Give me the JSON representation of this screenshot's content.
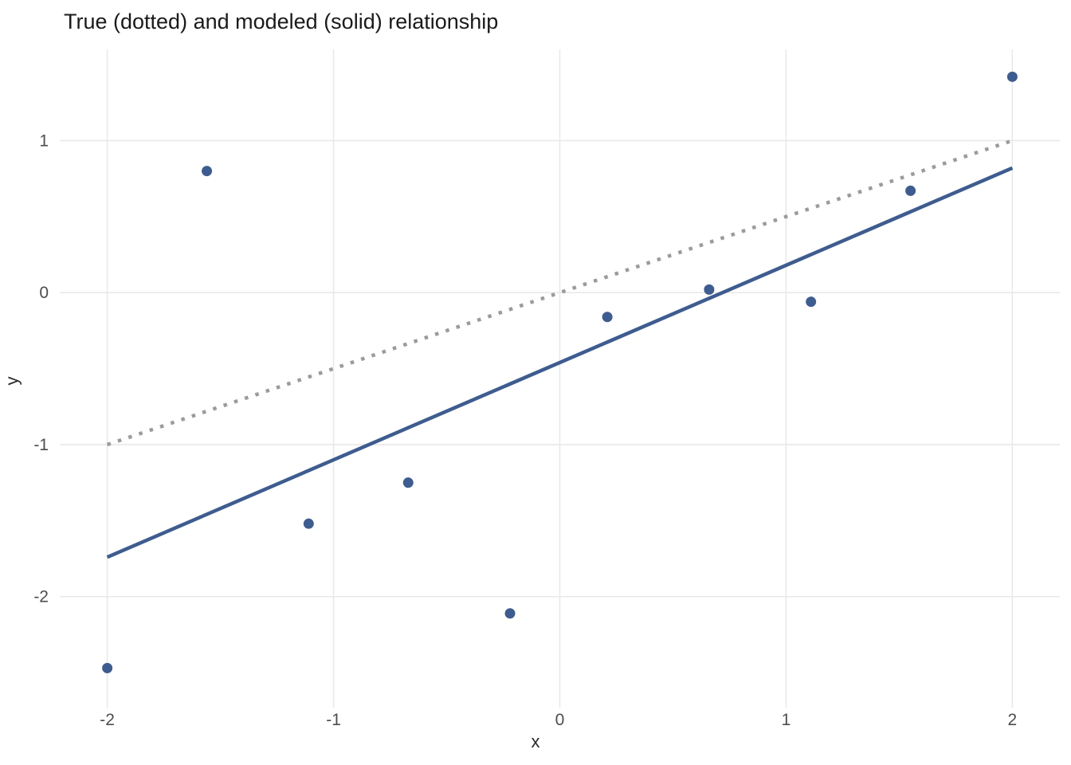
{
  "chart_data": {
    "type": "scatter",
    "title": "True (dotted) and modeled (solid) relationship",
    "xlabel": "x",
    "ylabel": "y",
    "xlim": [
      -2.21,
      2.21
    ],
    "ylim": [
      -2.73,
      1.6
    ],
    "x_ticks": [
      -2,
      -1,
      0,
      1,
      2
    ],
    "y_ticks": [
      -2,
      -1,
      0,
      1
    ],
    "grid": true,
    "legend": "none",
    "points": [
      {
        "x": -2.0,
        "y": -2.47
      },
      {
        "x": -1.56,
        "y": 0.8
      },
      {
        "x": -1.11,
        "y": -1.52
      },
      {
        "x": -0.67,
        "y": -1.25
      },
      {
        "x": -0.22,
        "y": -2.11
      },
      {
        "x": 0.21,
        "y": -0.16
      },
      {
        "x": 0.66,
        "y": 0.02
      },
      {
        "x": 1.11,
        "y": -0.06
      },
      {
        "x": 1.55,
        "y": 0.67
      },
      {
        "x": 2.0,
        "y": 1.42
      }
    ],
    "lines": [
      {
        "name": "true-relationship",
        "style": "dotted",
        "color": "#9b9b9b",
        "slope": 0.5,
        "intercept": 0.0,
        "x_start": -2,
        "x_end": 2
      },
      {
        "name": "modeled-relationship",
        "style": "solid",
        "color": "#3e5c8f",
        "slope": 0.64,
        "intercept": -0.46,
        "x_start": -2,
        "x_end": 2
      }
    ],
    "colors": {
      "points": "#3e5c8f",
      "grid": "#e9e9e9",
      "axis_text": "#4d4d4d",
      "title": "#1a1a1a",
      "background": "#ffffff"
    }
  }
}
